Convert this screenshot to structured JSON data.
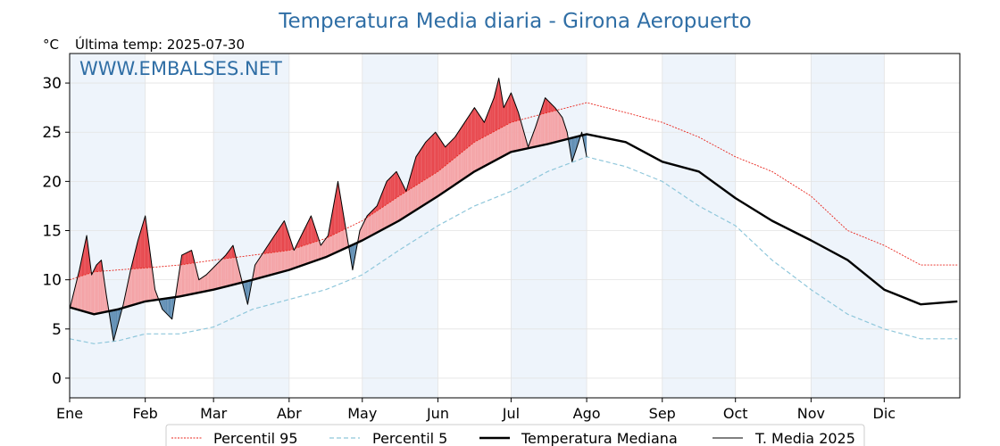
{
  "chart_data": {
    "type": "line",
    "title": "Temperatura Media diaria - Girona Aeropuerto",
    "unit_label": "°C",
    "subtitle": "Última temp: 2025-07-30",
    "watermark": "WWW.EMBALSES.NET",
    "xlabel": "",
    "ylabel": "",
    "ylim": [
      -2,
      33
    ],
    "yticks": [
      0,
      5,
      10,
      15,
      20,
      25,
      30
    ],
    "xlim": [
      0,
      365
    ],
    "month_labels": [
      "Ene",
      "Feb",
      "Mar",
      "Abr",
      "May",
      "Jun",
      "Jul",
      "Ago",
      "Sep",
      "Oct",
      "Nov",
      "Dic"
    ],
    "month_starts": [
      0,
      31,
      59,
      90,
      120,
      151,
      181,
      212,
      243,
      273,
      304,
      334
    ],
    "grid": true,
    "legend_position": "bottom",
    "legend": {
      "p95": "Percentil 95",
      "p5": "Percentil 5",
      "median": "Temperatura Mediana",
      "current": "T. Media 2025"
    },
    "colors": {
      "p95": "#e8261e",
      "p5": "#8fc7db",
      "median": "#000000",
      "current": "#000000",
      "fill_above_median": "#f4a3a6",
      "fill_above_p95": "#e8484e",
      "fill_below_median": "#5f8db3",
      "band_shade": "#eef4fb",
      "title": "#2f6ea5",
      "watermark": "#2f6ea5"
    },
    "series": [
      {
        "key": "p95",
        "name": "Percentil 95",
        "x": [
          0,
          10,
          20,
          31,
          45,
          59,
          75,
          90,
          105,
          120,
          135,
          151,
          166,
          181,
          196,
          212,
          228,
          243,
          258,
          273,
          288,
          304,
          319,
          334,
          349,
          364
        ],
        "values": [
          10.0,
          10.8,
          11.0,
          11.2,
          11.5,
          12.0,
          12.5,
          13.0,
          14.2,
          16.0,
          18.5,
          21.0,
          24.0,
          26.0,
          27.0,
          28.0,
          27.0,
          26.0,
          24.5,
          22.5,
          21.0,
          18.5,
          15.0,
          13.5,
          11.5,
          11.5
        ]
      },
      {
        "key": "p5",
        "name": "Percentil 5",
        "x": [
          0,
          10,
          20,
          31,
          45,
          59,
          75,
          90,
          105,
          120,
          135,
          151,
          166,
          181,
          196,
          212,
          228,
          243,
          258,
          273,
          288,
          304,
          319,
          334,
          349,
          364
        ],
        "values": [
          4.0,
          3.5,
          3.8,
          4.5,
          4.5,
          5.2,
          7.0,
          8.0,
          9.0,
          10.5,
          13.0,
          15.5,
          17.5,
          19.0,
          21.0,
          22.5,
          21.5,
          20.0,
          17.5,
          15.5,
          12.0,
          9.0,
          6.5,
          5.0,
          4.0,
          4.0
        ]
      },
      {
        "key": "median",
        "name": "Temperatura Mediana",
        "x": [
          0,
          10,
          20,
          31,
          45,
          59,
          75,
          90,
          105,
          120,
          135,
          151,
          166,
          181,
          196,
          212,
          228,
          243,
          258,
          273,
          288,
          304,
          319,
          334,
          349,
          364
        ],
        "values": [
          7.2,
          6.5,
          7.0,
          7.8,
          8.3,
          9.0,
          10.0,
          11.0,
          12.3,
          14.0,
          16.0,
          18.5,
          21.0,
          23.0,
          23.8,
          24.8,
          24.0,
          22.0,
          21.0,
          18.3,
          16.0,
          14.0,
          12.0,
          9.0,
          7.5,
          7.8
        ]
      },
      {
        "key": "current",
        "name": "T. Media 2025",
        "x": [
          0,
          4,
          7,
          9,
          11,
          13,
          15,
          18,
          22,
          25,
          28,
          31,
          35,
          38,
          42,
          46,
          50,
          53,
          56,
          60,
          64,
          67,
          70,
          73,
          76,
          80,
          84,
          88,
          92,
          96,
          99,
          103,
          106,
          110,
          113,
          116,
          119,
          122,
          126,
          130,
          134,
          138,
          142,
          146,
          150,
          154,
          158,
          162,
          166,
          170,
          174,
          176,
          178,
          181,
          184,
          188,
          191,
          195,
          199,
          202,
          204,
          206,
          208,
          210,
          212
        ],
        "values": [
          7.0,
          11.0,
          14.5,
          10.5,
          11.5,
          12.0,
          8.5,
          3.8,
          7.5,
          11.0,
          14.0,
          16.5,
          9.0,
          7.0,
          6.0,
          12.5,
          13.0,
          10.0,
          10.5,
          11.5,
          12.5,
          13.5,
          10.5,
          7.5,
          11.5,
          13.0,
          14.5,
          16.0,
          13.0,
          15.0,
          16.5,
          13.5,
          14.5,
          20.0,
          15.5,
          11.0,
          15.0,
          16.5,
          17.5,
          20.0,
          21.0,
          19.0,
          22.5,
          24.0,
          25.0,
          23.5,
          24.5,
          26.0,
          27.5,
          26.0,
          28.5,
          30.5,
          27.5,
          29.0,
          27.0,
          23.5,
          25.5,
          28.5,
          27.5,
          26.5,
          25.0,
          22.0,
          23.5,
          25.0,
          22.5
        ]
      }
    ]
  }
}
